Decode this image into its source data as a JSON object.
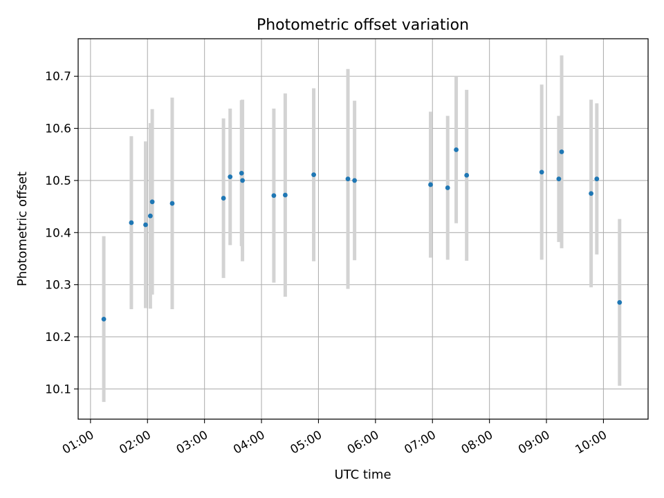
{
  "chart_data": {
    "type": "scatter",
    "title": "Photometric offset variation",
    "xlabel": "UTC time",
    "ylabel": "Photometric offset",
    "x_axis_kind": "time (HH:MM)",
    "xlim": [
      "00:47",
      "10:47"
    ],
    "ylim": [
      10.042,
      10.772
    ],
    "grid": true,
    "x_tick_labels": [
      "01:00",
      "02:00",
      "03:00",
      "04:00",
      "05:00",
      "06:00",
      "07:00",
      "08:00",
      "09:00",
      "10:00"
    ],
    "y_ticks": [
      10.1,
      10.2,
      10.3,
      10.4,
      10.5,
      10.6,
      10.7
    ],
    "y_tick_labels": [
      "10.1",
      "10.2",
      "10.3",
      "10.4",
      "10.5",
      "10.6",
      "10.7"
    ],
    "errorbar_color": "#d3d3d3",
    "marker_color": "#1f77b4",
    "points": [
      {
        "x": "01:14",
        "y": 10.234,
        "err": 0.159
      },
      {
        "x": "01:43",
        "y": 10.419,
        "err": 0.166
      },
      {
        "x": "01:58",
        "y": 10.415,
        "err": 0.16
      },
      {
        "x": "02:03",
        "y": 10.432,
        "err": 0.178
      },
      {
        "x": "02:05",
        "y": 10.459,
        "err": 0.178
      },
      {
        "x": "02:26",
        "y": 10.456,
        "err": 0.203
      },
      {
        "x": "03:20",
        "y": 10.466,
        "err": 0.153
      },
      {
        "x": "03:27",
        "y": 10.507,
        "err": 0.131
      },
      {
        "x": "03:39",
        "y": 10.514,
        "err": 0.14
      },
      {
        "x": "03:40",
        "y": 10.5,
        "err": 0.155
      },
      {
        "x": "04:13",
        "y": 10.471,
        "err": 0.167
      },
      {
        "x": "04:25",
        "y": 10.472,
        "err": 0.195
      },
      {
        "x": "04:55",
        "y": 10.511,
        "err": 0.166
      },
      {
        "x": "05:31",
        "y": 10.503,
        "err": 0.211
      },
      {
        "x": "05:38",
        "y": 10.5,
        "err": 0.153
      },
      {
        "x": "06:58",
        "y": 10.492,
        "err": 0.14
      },
      {
        "x": "07:16",
        "y": 10.486,
        "err": 0.138
      },
      {
        "x": "07:25",
        "y": 10.559,
        "err": 0.141
      },
      {
        "x": "07:36",
        "y": 10.51,
        "err": 0.164
      },
      {
        "x": "08:55",
        "y": 10.516,
        "err": 0.168
      },
      {
        "x": "09:13",
        "y": 10.503,
        "err": 0.121
      },
      {
        "x": "09:16",
        "y": 10.555,
        "err": 0.185
      },
      {
        "x": "09:47",
        "y": 10.475,
        "err": 0.18
      },
      {
        "x": "09:53",
        "y": 10.503,
        "err": 0.145
      },
      {
        "x": "10:17",
        "y": 10.266,
        "err": 0.16
      }
    ]
  }
}
